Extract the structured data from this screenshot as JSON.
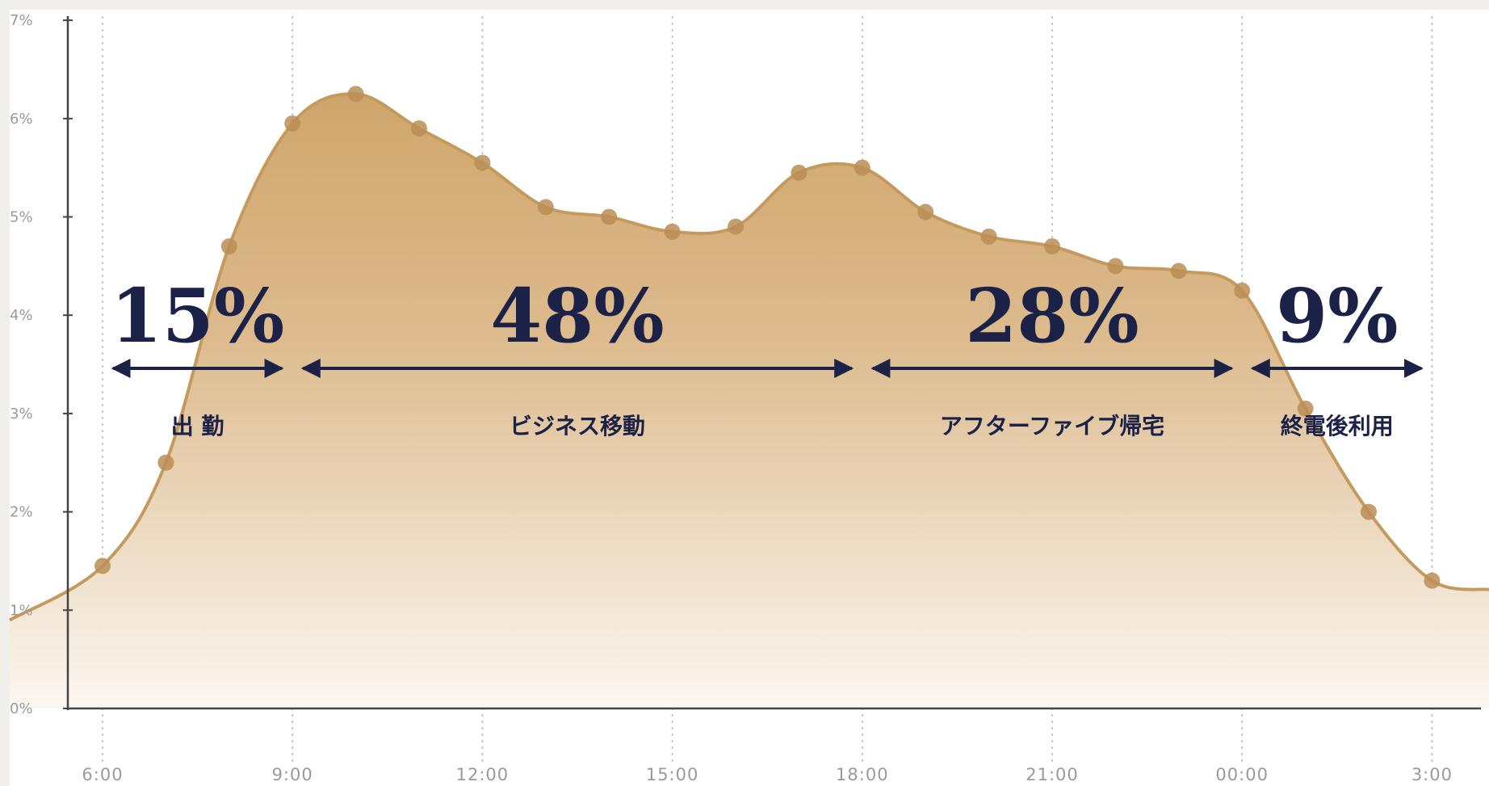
{
  "chart_data": {
    "type": "area",
    "title": "",
    "xlabel": "",
    "ylabel": "",
    "x_ticks": [
      "6:00",
      "9:00",
      "12:00",
      "15:00",
      "18:00",
      "21:00",
      "00:00",
      "3:00"
    ],
    "y_ticks": [
      "0%",
      "1%",
      "2%",
      "3%",
      "4%",
      "5%",
      "6%",
      "7%"
    ],
    "ylim": [
      0,
      7
    ],
    "grid": "vertical-dashed",
    "x_hours": [
      6,
      7,
      8,
      9,
      10,
      11,
      12,
      13,
      14,
      15,
      16,
      17,
      18,
      19,
      20,
      21,
      22,
      23,
      24,
      25,
      26,
      27
    ],
    "values": [
      1.45,
      2.5,
      4.7,
      5.95,
      6.25,
      5.9,
      5.55,
      5.1,
      5.0,
      4.85,
      4.9,
      5.45,
      5.5,
      5.05,
      4.8,
      4.7,
      4.5,
      4.45,
      4.25,
      3.05,
      2.0,
      1.3
    ],
    "colors": {
      "line": "#c59a5e",
      "fill_top": "#cfa56b",
      "fill_bottom": "#fbf7f1",
      "marker": "#ba8e55",
      "annotation": "#1b2147",
      "axis": "#444444",
      "tick_text": "#9a9a9a"
    },
    "segments": [
      {
        "percent": "15%",
        "label": "出 勤",
        "from_hour": 6,
        "to_hour": 9
      },
      {
        "percent": "48%",
        "label": "ビジネス移動",
        "from_hour": 9,
        "to_hour": 18
      },
      {
        "percent": "28%",
        "label": "アフターファイブ帰宅",
        "from_hour": 18,
        "to_hour": 24
      },
      {
        "percent": "9%",
        "label": "終電後利用",
        "from_hour": 24,
        "to_hour": 27
      }
    ]
  }
}
